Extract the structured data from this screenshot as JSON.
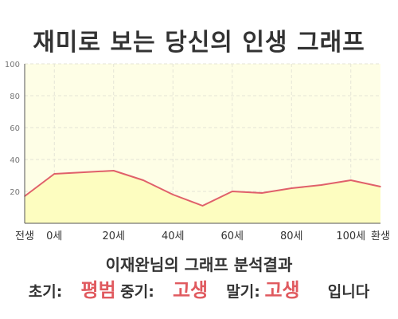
{
  "title": "재미로 보는 당신의 인생 그래프",
  "subtitle": "이재완님의 그래프 분석결과",
  "summary": {
    "early_label": "초기:",
    "early_value": "평범",
    "mid_label": "중기:",
    "mid_value": "고생",
    "late_label": "말기:",
    "late_value": "고생",
    "ending": "입니다"
  },
  "colors": {
    "plot_background": "#fefee6",
    "area_fill": "#fdfdc0",
    "line": "#e0606a",
    "grid": "#e4e4d6",
    "accent_text": "#e05a5f"
  },
  "chart_data": {
    "type": "area",
    "title": "",
    "xlabel": "",
    "ylabel": "",
    "xlim": [
      -10,
      110
    ],
    "ylim": [
      0,
      100
    ],
    "grid": true,
    "x_ticks": [
      {
        "value": -10,
        "label": "전생"
      },
      {
        "value": 0,
        "label": "0세"
      },
      {
        "value": 20,
        "label": "20세"
      },
      {
        "value": 40,
        "label": "40세"
      },
      {
        "value": 60,
        "label": "60세"
      },
      {
        "value": 80,
        "label": "80세"
      },
      {
        "value": 100,
        "label": "100세"
      },
      {
        "value": 110,
        "label": "환생"
      }
    ],
    "y_ticks": [
      {
        "value": 20,
        "label": "20"
      },
      {
        "value": 40,
        "label": "40"
      },
      {
        "value": 60,
        "label": "60"
      },
      {
        "value": 80,
        "label": "80"
      },
      {
        "value": 100,
        "label": "100"
      }
    ],
    "series": [
      {
        "points": [
          {
            "x": -10,
            "y": 17
          },
          {
            "x": 0,
            "y": 31
          },
          {
            "x": 10,
            "y": 32
          },
          {
            "x": 20,
            "y": 33
          },
          {
            "x": 30,
            "y": 27
          },
          {
            "x": 40,
            "y": 18
          },
          {
            "x": 50,
            "y": 11
          },
          {
            "x": 60,
            "y": 20
          },
          {
            "x": 70,
            "y": 19
          },
          {
            "x": 80,
            "y": 22
          },
          {
            "x": 90,
            "y": 24
          },
          {
            "x": 100,
            "y": 27
          },
          {
            "x": 110,
            "y": 23
          }
        ]
      }
    ]
  }
}
